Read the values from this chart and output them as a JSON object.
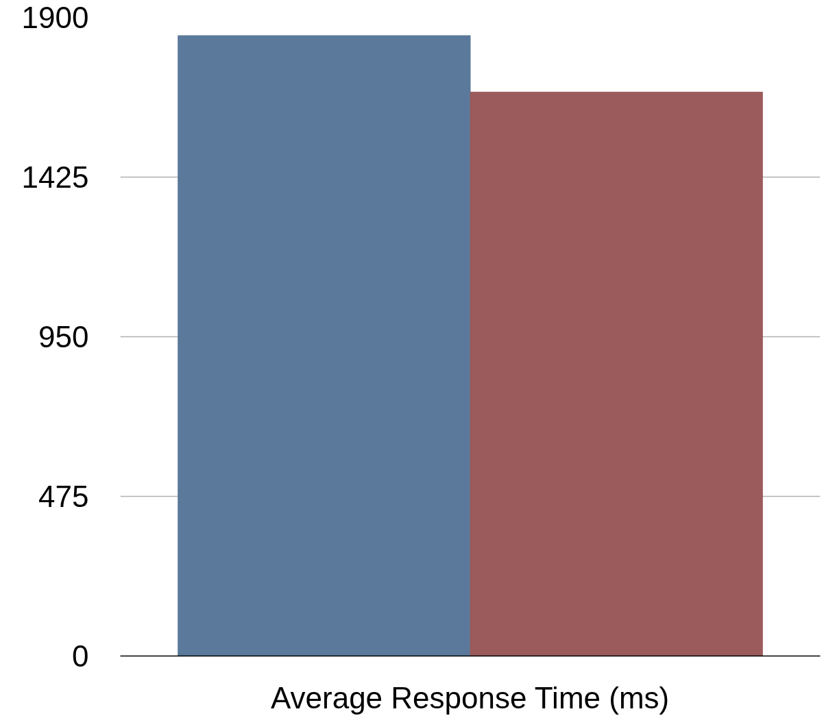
{
  "chart_data": {
    "type": "bar",
    "categories": [
      "Average Response Time (ms)"
    ],
    "series": [
      {
        "color": "#5b7a9b",
        "values": [
          1846
        ]
      },
      {
        "color": "#9b5a5b",
        "values": [
          1678
        ]
      }
    ],
    "ylim": [
      0,
      1900
    ],
    "yticks": [
      0,
      475,
      950,
      1425,
      1900
    ],
    "grid": "y"
  }
}
